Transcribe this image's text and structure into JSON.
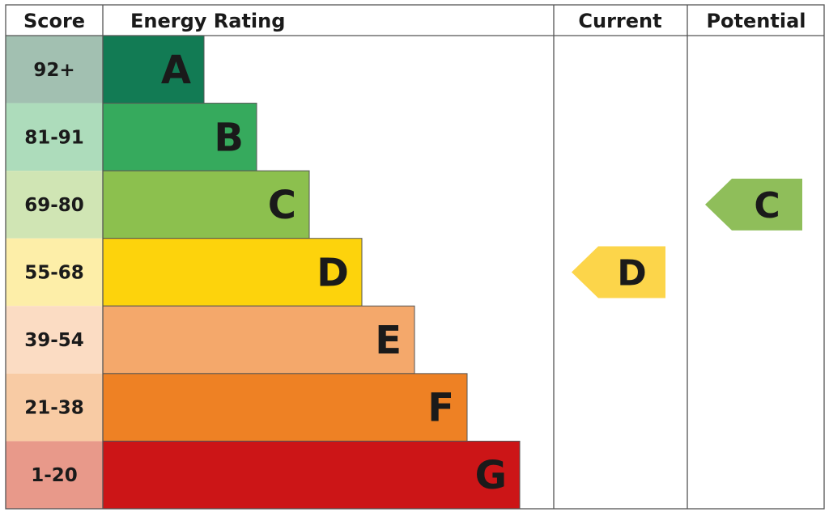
{
  "headers": {
    "score": "Score",
    "rating": "Energy Rating",
    "current": "Current",
    "potential": "Potential"
  },
  "chart_data": {
    "type": "bar",
    "bands": [
      {
        "score": "92+",
        "letter": "A",
        "color": "#127b54",
        "score_bg": "#a2c0b1"
      },
      {
        "score": "81-91",
        "letter": "B",
        "color": "#36aa5d",
        "score_bg": "#addcbb"
      },
      {
        "score": "69-80",
        "letter": "C",
        "color": "#8cc04e",
        "score_bg": "#d0e5b4"
      },
      {
        "score": "55-68",
        "letter": "D",
        "color": "#fdd30c",
        "score_bg": "#fdeea8"
      },
      {
        "score": "39-54",
        "letter": "E",
        "color": "#f4a86b",
        "score_bg": "#fbdcc3"
      },
      {
        "score": "21-38",
        "letter": "F",
        "color": "#ee8124",
        "score_bg": "#f8cba4"
      },
      {
        "score": "1-20",
        "letter": "G",
        "color": "#cc1517",
        "score_bg": "#e8998a"
      }
    ],
    "current": {
      "letter": "D",
      "color": "#fcd54a"
    },
    "potential": {
      "letter": "C",
      "color": "#8fbe5a"
    }
  }
}
